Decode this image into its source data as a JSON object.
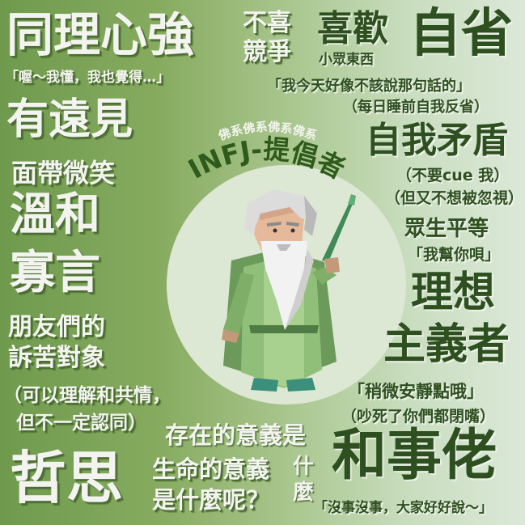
{
  "left": {
    "title": "同理心強",
    "quote1": "「喔～我懂，我也覺得…」",
    "farsighted": "有遠見",
    "smile": "面帶微笑",
    "gentle": "溫和",
    "quiet": "寡言",
    "listener_1": "朋友們的",
    "listener_2": "訴苦對象",
    "understand_1": "（可以理解和共情，",
    "understand_2": "但不一定認同）",
    "philosophy": "哲思"
  },
  "top": {
    "no_compete_1": "不喜",
    "no_compete_2": "競爭",
    "like": "喜歡",
    "small_group": "小眾東西",
    "self_reflect": "自省",
    "quote2": "「我今天好像不該說那句話的」",
    "nightly": "（每日睡前自我反省）"
  },
  "center": {
    "arc_small": "佛系佛系佛系佛系",
    "arc_big": "INFJ-提倡者",
    "meaning_of_existence": "存在的意義是",
    "what_1": "什",
    "what_2": "麼",
    "meaning_of_life_1": "生命的意義",
    "meaning_of_life_2": "是什麼呢？"
  },
  "right": {
    "contradiction": "自我矛盾",
    "no_cue": "（不要cue 我）",
    "dont_ignore": "（但又不想被忽視）",
    "equality": "眾生平等",
    "help": "「我幫你唄」",
    "idealist_1": "理想",
    "idealist_2": "主義者",
    "quiet_please": "「稍微安靜點哦」",
    "so_noisy": "（吵死了你們都閉嘴）",
    "peacemaker": "和事佬",
    "quote3": "「沒事沒事，大家好好說～」"
  },
  "colors": {
    "bg_left": "#6f9a4e",
    "bg_right": "#dbe8d8",
    "dark_text": "#2e4f1f",
    "light_text": "#f3f4ef",
    "circle": "#dde8d4"
  }
}
